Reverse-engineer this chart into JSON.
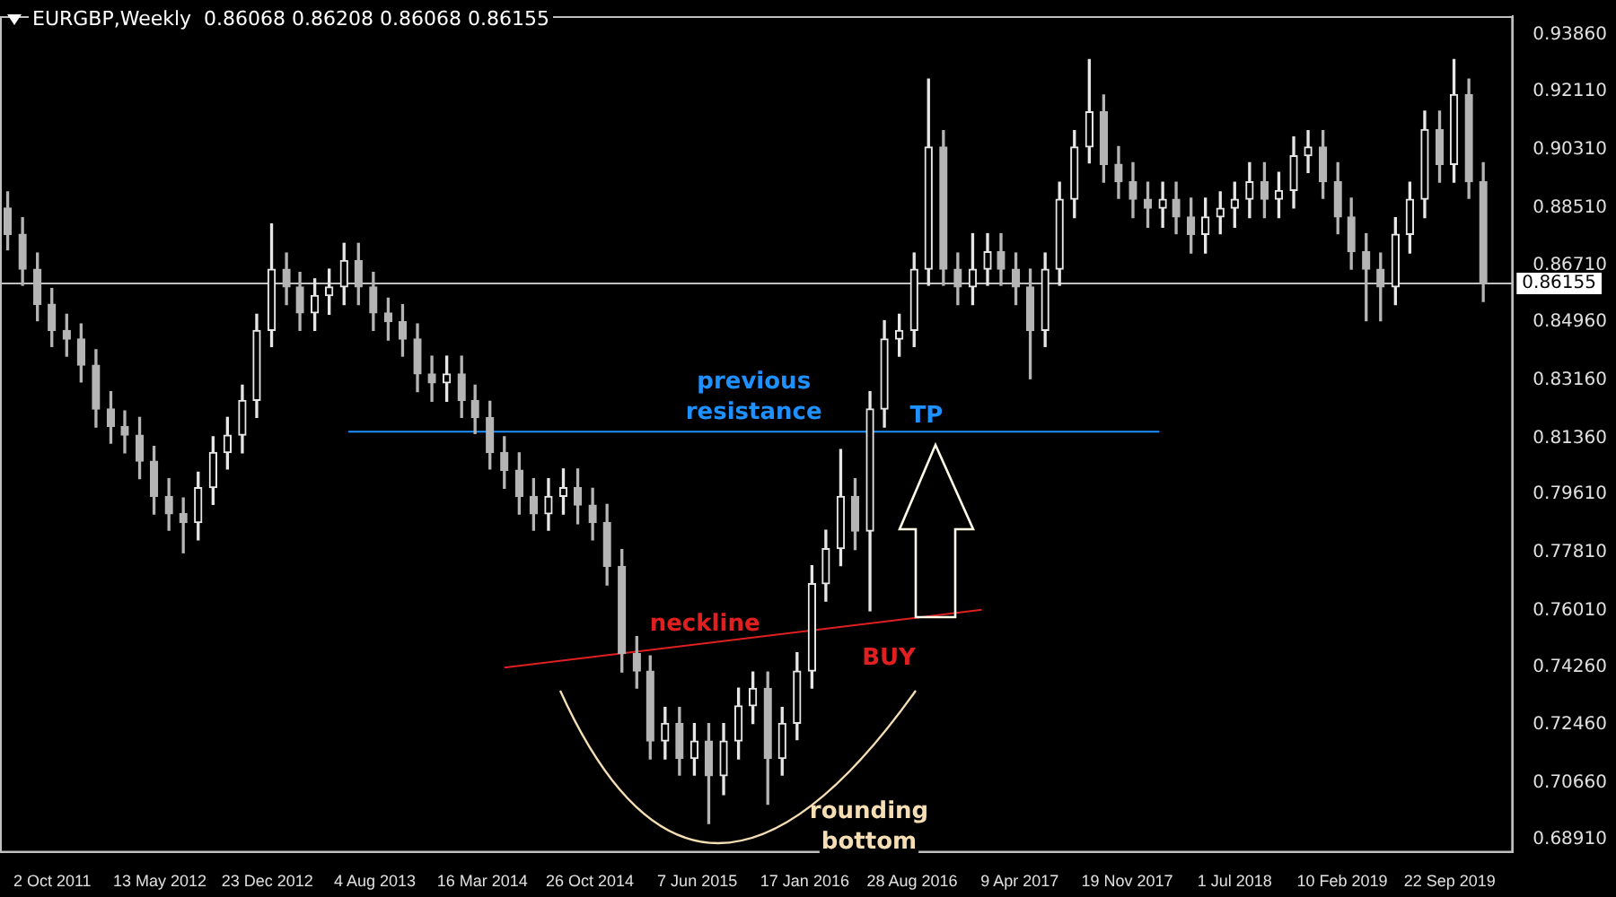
{
  "chart_data": {
    "type": "candlestick",
    "title": "EURGBP,Weekly  0.86068 0.86208 0.86068 0.86155",
    "colors": [
      "#b4b4b4",
      "#b4b4b4",
      "#b4b4b4",
      "#b4b4b4",
      "#b4b4b4",
      "#b4b4b4",
      "#b4b4b4",
      "#b4b4b4",
      "#b4b4b4",
      "#b4b4b4",
      "#b4b4b4",
      "#b4b4b4",
      "#b4b4b4",
      "#e6e6e6",
      "#e6e6e6",
      "#e6e6e6",
      "#e6e6e6",
      "#e6e6e6",
      "#e6e6e6",
      "#b4b4b4",
      "#b4b4b4",
      "#e6e6e6",
      "#e6e6e6",
      "#e6e6e6",
      "#b4b4b4",
      "#b4b4b4",
      "#b4b4b4",
      "#b4b4b4",
      "#b4b4b4",
      "#b4b4b4",
      "#e6e6e6",
      "#b4b4b4",
      "#b4b4b4",
      "#b4b4b4",
      "#b4b4b4",
      "#b4b4b4",
      "#b4b4b4",
      "#e6e6e6",
      "#e6e6e6",
      "#b4b4b4",
      "#b4b4b4",
      "#b4b4b4",
      "#b4b4b4",
      "#b4b4b4",
      "#b4b4b4",
      "#e6e6e6",
      "#b4b4b4",
      "#e6e6e6",
      "#b4b4b4",
      "#e6e6e6",
      "#e6e6e6",
      "#e6e6e6",
      "#b4b4b4",
      "#e6e6e6",
      "#e6e6e6",
      "#e6e6e6",
      "#e6e6e6",
      "#e6e6e6",
      "#b4b4b4",
      "#e6e6e6",
      "#e6e6e6",
      "#e6e6e6",
      "#e6e6e6",
      "#e6e6e6",
      "#b4b4b4",
      "#b4b4b4",
      "#e6e6e6",
      "#e6e6e6",
      "#b4b4b4",
      "#b4b4b4",
      "#b4b4b4",
      "#e6e6e6",
      "#e6e6e6",
      "#e6e6e6",
      "#e6e6e6",
      "#b4b4b4",
      "#b4b4b4",
      "#b4b4b4",
      "#b4b4b4",
      "#e6e6e6",
      "#b4b4b4",
      "#b4b4b4",
      "#e6e6e6",
      "#e6e6e6",
      "#e6e6e6",
      "#e6e6e6",
      "#b4b4b4",
      "#e6e6e6",
      "#e6e6e6",
      "#e6e6e6",
      "#b4b4b4",
      "#b4b4b4",
      "#b4b4b4",
      "#b4b4b4",
      "#b4b4b4",
      "#e6e6e6",
      "#e6e6e6",
      "#e6e6e6",
      "#b4b4b4",
      "#e6e6e6",
      "#b4b4b4",
      "#b4b4b4"
    ],
    "x": [
      "2011-07",
      "2011-08",
      "2011-09",
      "2011-10",
      "2011-11",
      "2011-12",
      "2012-01",
      "2012-02",
      "2012-03",
      "2012-04",
      "2012-05",
      "2012-06",
      "2012-07",
      "2012-08",
      "2012-09",
      "2012-10",
      "2012-11",
      "2012-12",
      "2013-01",
      "2013-02",
      "2013-03",
      "2013-04",
      "2013-05",
      "2013-06",
      "2013-07",
      "2013-08",
      "2013-09",
      "2013-10",
      "2013-11",
      "2013-12",
      "2014-01",
      "2014-02",
      "2014-03",
      "2014-04",
      "2014-05",
      "2014-06",
      "2014-07",
      "2014-08",
      "2014-09",
      "2014-10",
      "2014-11",
      "2014-12",
      "2015-01",
      "2015-02",
      "2015-03",
      "2015-04",
      "2015-05",
      "2015-06",
      "2015-07",
      "2015-08",
      "2015-09",
      "2015-10",
      "2015-11",
      "2015-12",
      "2016-01",
      "2016-02",
      "2016-03",
      "2016-04",
      "2016-05",
      "2016-06",
      "2016-07",
      "2016-08",
      "2016-09",
      "2016-10",
      "2016-11",
      "2016-12",
      "2017-01",
      "2017-02",
      "2017-03",
      "2017-04",
      "2017-05",
      "2017-06",
      "2017-07",
      "2017-08",
      "2017-09",
      "2017-10",
      "2017-11",
      "2017-12",
      "2018-01",
      "2018-02",
      "2018-03",
      "2018-04",
      "2018-05",
      "2018-06",
      "2018-07",
      "2018-08",
      "2018-09",
      "2018-10",
      "2018-11",
      "2018-12",
      "2019-01",
      "2019-02",
      "2019-03",
      "2019-04",
      "2019-05",
      "2019-06",
      "2019-07",
      "2019-08",
      "2019-09",
      "2019-10",
      "2019-11",
      "2019-12"
    ],
    "ohlc": [
      [
        0.885,
        0.89,
        0.872,
        0.8768
      ],
      [
        0.8768,
        0.882,
        0.861,
        0.866
      ],
      [
        0.866,
        0.871,
        0.85,
        0.8551
      ],
      [
        0.8551,
        0.86,
        0.842,
        0.847
      ],
      [
        0.847,
        0.852,
        0.839,
        0.8443
      ],
      [
        0.8443,
        0.849,
        0.831,
        0.8362
      ],
      [
        0.8362,
        0.841,
        0.817,
        0.8226
      ],
      [
        0.8226,
        0.828,
        0.812,
        0.8172
      ],
      [
        0.8172,
        0.822,
        0.809,
        0.8145
      ],
      [
        0.8145,
        0.82,
        0.801,
        0.8064
      ],
      [
        0.8064,
        0.811,
        0.79,
        0.7955
      ],
      [
        0.7955,
        0.801,
        0.785,
        0.7901
      ],
      [
        0.7901,
        0.795,
        0.778,
        0.7874
      ],
      [
        0.7874,
        0.803,
        0.782,
        0.7982
      ],
      [
        0.7982,
        0.814,
        0.793,
        0.8091
      ],
      [
        0.8091,
        0.82,
        0.804,
        0.8145
      ],
      [
        0.8145,
        0.83,
        0.809,
        0.8253
      ],
      [
        0.8253,
        0.852,
        0.82,
        0.847
      ],
      [
        0.847,
        0.88,
        0.842,
        0.866
      ],
      [
        0.866,
        0.871,
        0.855,
        0.8605
      ],
      [
        0.8605,
        0.865,
        0.847,
        0.8524
      ],
      [
        0.8524,
        0.863,
        0.847,
        0.8578
      ],
      [
        0.8578,
        0.866,
        0.852,
        0.8605
      ],
      [
        0.8605,
        0.874,
        0.855,
        0.8687
      ],
      [
        0.8687,
        0.874,
        0.855,
        0.8605
      ],
      [
        0.8605,
        0.865,
        0.847,
        0.8524
      ],
      [
        0.8524,
        0.857,
        0.844,
        0.8497
      ],
      [
        0.8497,
        0.855,
        0.839,
        0.8443
      ],
      [
        0.8443,
        0.849,
        0.828,
        0.8335
      ],
      [
        0.8335,
        0.839,
        0.825,
        0.8307
      ],
      [
        0.8307,
        0.839,
        0.825,
        0.8335
      ],
      [
        0.8335,
        0.839,
        0.82,
        0.8253
      ],
      [
        0.8253,
        0.83,
        0.815,
        0.8199
      ],
      [
        0.8199,
        0.825,
        0.804,
        0.8091
      ],
      [
        0.8091,
        0.814,
        0.798,
        0.8036
      ],
      [
        0.8036,
        0.809,
        0.79,
        0.7955
      ],
      [
        0.7955,
        0.801,
        0.785,
        0.7901
      ],
      [
        0.7901,
        0.801,
        0.785,
        0.7955
      ],
      [
        0.7955,
        0.804,
        0.79,
        0.7982
      ],
      [
        0.7982,
        0.804,
        0.787,
        0.7928
      ],
      [
        0.7928,
        0.798,
        0.782,
        0.7874
      ],
      [
        0.7874,
        0.793,
        0.768,
        0.7738
      ],
      [
        0.7738,
        0.779,
        0.741,
        0.7467
      ],
      [
        0.7467,
        0.752,
        0.736,
        0.7413
      ],
      [
        0.7413,
        0.746,
        0.714,
        0.7196
      ],
      [
        0.7196,
        0.73,
        0.714,
        0.7251
      ],
      [
        0.7251,
        0.73,
        0.709,
        0.7142
      ],
      [
        0.7142,
        0.725,
        0.709,
        0.7196
      ],
      [
        0.7196,
        0.725,
        0.694,
        0.7088
      ],
      [
        0.7088,
        0.725,
        0.703,
        0.7196
      ],
      [
        0.7196,
        0.736,
        0.714,
        0.7305
      ],
      [
        0.7305,
        0.741,
        0.725,
        0.7359
      ],
      [
        0.7359,
        0.741,
        0.7,
        0.7142
      ],
      [
        0.7142,
        0.73,
        0.709,
        0.7251
      ],
      [
        0.7251,
        0.747,
        0.72,
        0.7413
      ],
      [
        0.7413,
        0.774,
        0.736,
        0.7684
      ],
      [
        0.7684,
        0.785,
        0.763,
        0.7793
      ],
      [
        0.7793,
        0.81,
        0.774,
        0.7955
      ],
      [
        0.7955,
        0.801,
        0.779,
        0.7847
      ],
      [
        0.7847,
        0.828,
        0.76,
        0.8226
      ],
      [
        0.8226,
        0.85,
        0.817,
        0.8443
      ],
      [
        0.8443,
        0.852,
        0.839,
        0.847
      ],
      [
        0.847,
        0.871,
        0.842,
        0.866
      ],
      [
        0.866,
        0.925,
        0.861,
        0.9039
      ],
      [
        0.9039,
        0.909,
        0.861,
        0.866
      ],
      [
        0.866,
        0.871,
        0.855,
        0.8605
      ],
      [
        0.8605,
        0.877,
        0.855,
        0.866
      ],
      [
        0.866,
        0.877,
        0.861,
        0.8714
      ],
      [
        0.8714,
        0.877,
        0.861,
        0.866
      ],
      [
        0.866,
        0.871,
        0.855,
        0.8605
      ],
      [
        0.8605,
        0.866,
        0.832,
        0.847
      ],
      [
        0.847,
        0.871,
        0.842,
        0.866
      ],
      [
        0.866,
        0.893,
        0.861,
        0.8877
      ],
      [
        0.8877,
        0.909,
        0.882,
        0.9039
      ],
      [
        0.9039,
        0.931,
        0.899,
        0.9148
      ],
      [
        0.9148,
        0.92,
        0.893,
        0.8985
      ],
      [
        0.8985,
        0.904,
        0.888,
        0.8931
      ],
      [
        0.8931,
        0.899,
        0.882,
        0.8877
      ],
      [
        0.8877,
        0.893,
        0.879,
        0.8849
      ],
      [
        0.8849,
        0.893,
        0.879,
        0.8877
      ],
      [
        0.8877,
        0.893,
        0.877,
        0.8822
      ],
      [
        0.8822,
        0.888,
        0.871,
        0.8768
      ],
      [
        0.8768,
        0.888,
        0.871,
        0.8822
      ],
      [
        0.8822,
        0.89,
        0.877,
        0.8849
      ],
      [
        0.8849,
        0.893,
        0.879,
        0.8877
      ],
      [
        0.8877,
        0.899,
        0.882,
        0.8931
      ],
      [
        0.8931,
        0.899,
        0.882,
        0.8877
      ],
      [
        0.8877,
        0.896,
        0.882,
        0.8904
      ],
      [
        0.8904,
        0.907,
        0.885,
        0.9012
      ],
      [
        0.9012,
        0.909,
        0.896,
        0.9039
      ],
      [
        0.9039,
        0.909,
        0.888,
        0.8931
      ],
      [
        0.8931,
        0.899,
        0.877,
        0.8822
      ],
      [
        0.8822,
        0.888,
        0.866,
        0.8714
      ],
      [
        0.8714,
        0.877,
        0.85,
        0.866
      ],
      [
        0.866,
        0.871,
        0.85,
        0.8605
      ],
      [
        0.8605,
        0.882,
        0.855,
        0.8768
      ],
      [
        0.8768,
        0.893,
        0.871,
        0.8877
      ],
      [
        0.8877,
        0.915,
        0.882,
        0.9093
      ],
      [
        0.9093,
        0.915,
        0.893,
        0.8985
      ],
      [
        0.8985,
        0.931,
        0.893,
        0.9202
      ],
      [
        0.9202,
        0.925,
        0.888,
        0.8931
      ],
      [
        0.8931,
        0.899,
        0.856,
        0.8616
      ]
    ],
    "series": [
      {
        "type": "line",
        "name": "previous resistance",
        "color": "#1e90ff",
        "x": [
          "2013-06-10",
          "2018-01-25"
        ],
        "values": [
          0.8156,
          0.8156
        ]
      },
      {
        "type": "line",
        "name": "neckline",
        "color": "#e02020",
        "x": [
          "2014-05-01",
          "2017-01-20"
        ],
        "values": [
          0.7424,
          0.7603
        ]
      }
    ],
    "ref_lines": [
      {
        "axis": "y",
        "value": 0.86155,
        "label": "0.86155",
        "color": "#c0c0c0"
      }
    ],
    "annotations": [
      "TP",
      "BUY",
      "rounding bottom"
    ],
    "xlim": [
      "2011-06-15",
      "2020-02-01"
    ],
    "xticks": [
      {
        "value": "2011-10-02",
        "label": "2 Oct 2011"
      },
      {
        "value": "2012-05-13",
        "label": "13 May 2012"
      },
      {
        "value": "2012-12-23",
        "label": "23 Dec 2012"
      },
      {
        "value": "2013-08-04",
        "label": "4 Aug 2013"
      },
      {
        "value": "2014-03-16",
        "label": "16 Mar 2014"
      },
      {
        "value": "2014-10-26",
        "label": "26 Oct 2014"
      },
      {
        "value": "2015-06-07",
        "label": "7 Jun 2015"
      },
      {
        "value": "2016-01-17",
        "label": "17 Jan 2016"
      },
      {
        "value": "2016-08-28",
        "label": "28 Aug 2016"
      },
      {
        "value": "2017-04-09",
        "label": "9 Apr 2017"
      },
      {
        "value": "2017-11-19",
        "label": "19 Nov 2017"
      },
      {
        "value": "2018-07-01",
        "label": "1 Jul 2018"
      },
      {
        "value": "2019-02-10",
        "label": "10 Feb 2019"
      },
      {
        "value": "2019-09-22",
        "label": "22 Sep 2019"
      }
    ],
    "ylim": [
      0.685,
      0.9445
    ],
    "yticks": [
      {
        "value": 0.9386,
        "label": "0.93860"
      },
      {
        "value": 0.9211,
        "label": "0.92110"
      },
      {
        "value": 0.9031,
        "label": "0.90310"
      },
      {
        "value": 0.8851,
        "label": "0.88510"
      },
      {
        "value": 0.8671,
        "label": "0.86710"
      },
      {
        "value": 0.8496,
        "label": "0.84960"
      },
      {
        "value": 0.8316,
        "label": "0.83160"
      },
      {
        "value": 0.8136,
        "label": "0.81360"
      },
      {
        "value": 0.7961,
        "label": "0.79610"
      },
      {
        "value": 0.7781,
        "label": "0.77810"
      },
      {
        "value": 0.7601,
        "label": "0.76010"
      },
      {
        "value": 0.7426,
        "label": "0.74260"
      },
      {
        "value": 0.7246,
        "label": "0.72460"
      },
      {
        "value": 0.7066,
        "label": "0.70660"
      },
      {
        "value": 0.6891,
        "label": "0.68910"
      }
    ],
    "grid": false
  }
}
